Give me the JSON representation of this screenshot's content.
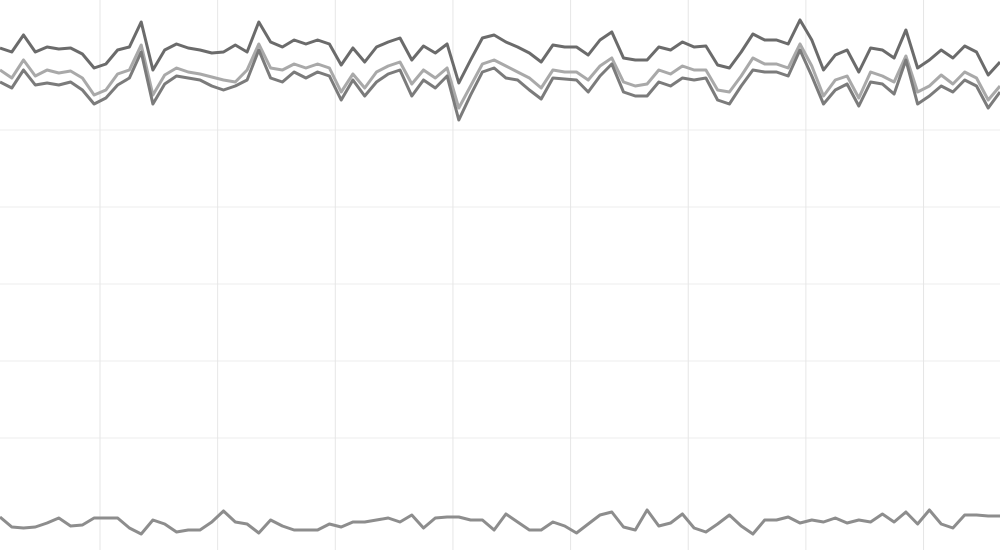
{
  "chart_data": {
    "type": "line",
    "xlim": [
      0,
      85
    ],
    "xticks": [
      8.5,
      18.5,
      28.5,
      38.5,
      48.5,
      58.5,
      68.5,
      78.5
    ],
    "ylim": [
      550,
      0
    ],
    "yticks": [
      130,
      207,
      284,
      361,
      438
    ],
    "grid": true,
    "series": [
      {
        "color": "#6b6b6b",
        "values": [
          48,
          52,
          35,
          52,
          47,
          49,
          48,
          54,
          68,
          64,
          50,
          47,
          22,
          70,
          50,
          44,
          48,
          50,
          53,
          52,
          45,
          52,
          22,
          42,
          47,
          40,
          44,
          40,
          44,
          65,
          48,
          62,
          47,
          42,
          38,
          60,
          46,
          53,
          44,
          83,
          60,
          38,
          35,
          42,
          47,
          53,
          62,
          45,
          47,
          47,
          55,
          40,
          32,
          58,
          60,
          60,
          47,
          50,
          42,
          47,
          46,
          65,
          68,
          52,
          34,
          40,
          40,
          44,
          20,
          40,
          70,
          55,
          50,
          72,
          48,
          50,
          58,
          30,
          68,
          60,
          50,
          58,
          46,
          52,
          75,
          62
        ]
      },
      {
        "color": "#a9a9a9",
        "values": [
          70,
          78,
          60,
          76,
          70,
          73,
          71,
          78,
          95,
          90,
          74,
          70,
          45,
          95,
          75,
          68,
          72,
          74,
          77,
          80,
          82,
          70,
          44,
          68,
          70,
          64,
          68,
          64,
          68,
          92,
          74,
          88,
          72,
          66,
          62,
          84,
          70,
          78,
          68,
          108,
          86,
          64,
          60,
          66,
          72,
          78,
          88,
          70,
          72,
          72,
          80,
          66,
          58,
          82,
          86,
          84,
          70,
          74,
          66,
          70,
          70,
          90,
          92,
          76,
          58,
          64,
          64,
          68,
          44,
          66,
          96,
          80,
          76,
          98,
          72,
          76,
          82,
          56,
          92,
          86,
          75,
          84,
          72,
          78,
          100,
          86
        ]
      },
      {
        "color": "#7b7b7b",
        "values": [
          82,
          88,
          70,
          85,
          83,
          85,
          82,
          90,
          104,
          98,
          85,
          78,
          52,
          104,
          84,
          76,
          78,
          80,
          86,
          90,
          86,
          80,
          50,
          78,
          82,
          72,
          78,
          72,
          76,
          100,
          80,
          96,
          82,
          74,
          70,
          96,
          80,
          88,
          76,
          120,
          95,
          72,
          68,
          78,
          80,
          90,
          99,
          78,
          79,
          80,
          92,
          76,
          64,
          92,
          96,
          96,
          82,
          86,
          78,
          80,
          78,
          100,
          104,
          86,
          70,
          72,
          72,
          76,
          50,
          76,
          104,
          90,
          84,
          106,
          82,
          84,
          94,
          60,
          104,
          96,
          86,
          92,
          80,
          86,
          108,
          92
        ]
      },
      {
        "color": "#8d8d8d",
        "values": [
          517,
          527,
          528,
          527,
          523,
          518,
          526,
          525,
          518,
          518,
          518,
          528,
          534,
          520,
          524,
          532,
          530,
          530,
          522,
          511,
          522,
          524,
          533,
          520,
          526,
          530,
          530,
          530,
          524,
          527,
          522,
          522,
          520,
          518,
          522,
          515,
          528,
          518,
          517,
          517,
          520,
          520,
          530,
          514,
          522,
          530,
          530,
          522,
          526,
          533,
          524,
          515,
          512,
          527,
          530,
          510,
          526,
          523,
          514,
          528,
          532,
          524,
          515,
          526,
          534,
          520,
          520,
          517,
          523,
          520,
          522,
          518,
          523,
          520,
          522,
          514,
          522,
          512,
          524,
          510,
          524,
          528,
          515,
          515,
          516,
          516
        ]
      }
    ]
  }
}
